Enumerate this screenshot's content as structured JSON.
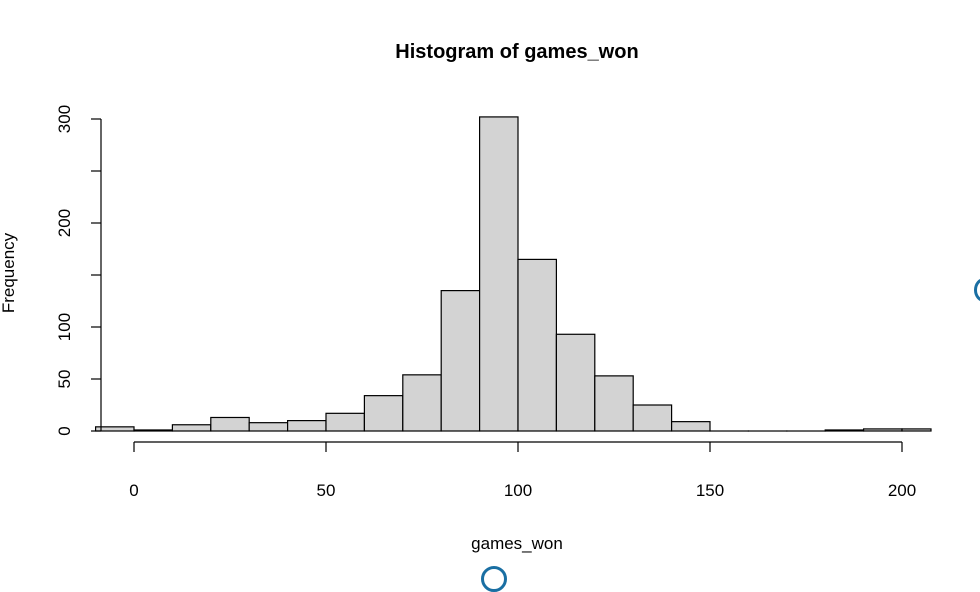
{
  "chart_data": {
    "type": "bar",
    "subtype": "histogram",
    "title": "Histogram of games_won",
    "xlabel": "games_won",
    "ylabel": "Frequency",
    "xlim": [
      -10,
      208
    ],
    "ylim": [
      0,
      300
    ],
    "x_ticks": [
      0,
      50,
      100,
      150,
      200
    ],
    "y_ticks": [
      0,
      50,
      100,
      200,
      300
    ],
    "y_minor_ticks": [
      150,
      250
    ],
    "bin_width": 10,
    "bins": [
      {
        "start": -10,
        "end": 0,
        "count": 4
      },
      {
        "start": 0,
        "end": 10,
        "count": 1
      },
      {
        "start": 10,
        "end": 20,
        "count": 6
      },
      {
        "start": 20,
        "end": 30,
        "count": 13
      },
      {
        "start": 30,
        "end": 40,
        "count": 8
      },
      {
        "start": 40,
        "end": 50,
        "count": 10
      },
      {
        "start": 50,
        "end": 60,
        "count": 17
      },
      {
        "start": 60,
        "end": 70,
        "count": 34
      },
      {
        "start": 70,
        "end": 80,
        "count": 54
      },
      {
        "start": 80,
        "end": 90,
        "count": 135
      },
      {
        "start": 90,
        "end": 100,
        "count": 302
      },
      {
        "start": 100,
        "end": 110,
        "count": 165
      },
      {
        "start": 110,
        "end": 120,
        "count": 93
      },
      {
        "start": 120,
        "end": 130,
        "count": 53
      },
      {
        "start": 130,
        "end": 140,
        "count": 25
      },
      {
        "start": 140,
        "end": 150,
        "count": 9
      },
      {
        "start": 150,
        "end": 160,
        "count": 0
      },
      {
        "start": 160,
        "end": 170,
        "count": 0
      },
      {
        "start": 170,
        "end": 180,
        "count": 0
      },
      {
        "start": 180,
        "end": 190,
        "count": 1
      },
      {
        "start": 190,
        "end": 200,
        "count": 2
      },
      {
        "start": 200,
        "end": 210,
        "count": 2
      }
    ]
  },
  "colors": {
    "bar_fill": "#d3d3d3",
    "bar_stroke": "#000000",
    "accent_circle": "#1a6fa3"
  }
}
